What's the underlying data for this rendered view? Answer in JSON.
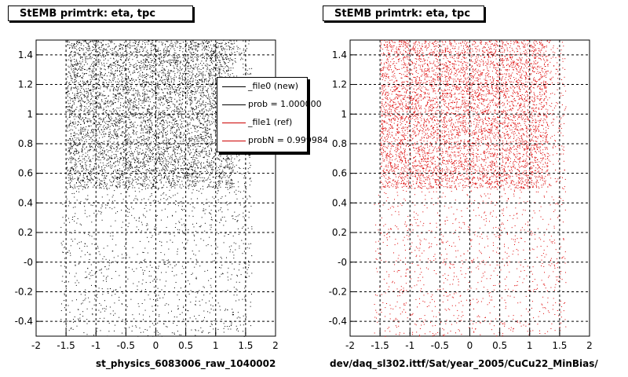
{
  "panels": {
    "left": {
      "title": "StEMB primtrk: eta, tpc",
      "xlabel": "st_physics_6083006_raw_1040002"
    },
    "right": {
      "title": "StEMB primtrk: eta, tpc",
      "xlabel": "dev/daq_sl302.ittf/Sat/year_2005/CuCu22_MinBias/"
    }
  },
  "legend": {
    "entries": [
      {
        "label": "_file0 (new)",
        "color": "#000000"
      },
      {
        "label": "prob = 1.000000",
        "color": "#000000"
      },
      {
        "label": "_file1 (ref)",
        "color": "#cc0000"
      },
      {
        "label": "probN = 0.999984",
        "color": "#cc0000"
      }
    ]
  },
  "chart_data": [
    {
      "type": "scatter",
      "title": "StEMB primtrk: eta, tpc",
      "xlabel": "st_physics_6083006_raw_1040002",
      "ylabel": "",
      "xlim": [
        -2,
        2
      ],
      "ylim": [
        -0.5,
        1.5
      ],
      "x_ticks": [
        "-2",
        "-1.5",
        "-1",
        "-0.5",
        "0",
        "0.5",
        "1",
        "1.5",
        "2"
      ],
      "y_ticks": [
        "-0.4",
        "-0.2",
        "-0",
        "0.2",
        "0.4",
        "0.6",
        "0.8",
        "1",
        "1.2",
        "1.4"
      ],
      "grid": true,
      "marker_color": "#000000",
      "density": {
        "x_dense_range": [
          -1.5,
          1.3
        ],
        "y_dense_range": [
          0.5,
          1.5
        ],
        "x_sparse_range": [
          -1.6,
          1.6
        ],
        "y_sparse_range": [
          -0.5,
          0.5
        ]
      }
    },
    {
      "type": "scatter",
      "title": "StEMB primtrk: eta, tpc",
      "xlabel": "dev/daq_sl302.ittf/Sat/year_2005/CuCu22_MinBias/",
      "ylabel": "",
      "xlim": [
        -2,
        2
      ],
      "ylim": [
        -0.5,
        1.5
      ],
      "x_ticks": [
        "-2",
        "-1.5",
        "-1",
        "-0.5",
        "0",
        "0.5",
        "1",
        "1.5",
        "2"
      ],
      "y_ticks": [
        "-0.4",
        "-0.2",
        "-0",
        "0.2",
        "0.4",
        "0.6",
        "0.8",
        "1",
        "1.2",
        "1.4"
      ],
      "grid": true,
      "marker_color": "#dd0000",
      "density": {
        "x_dense_range": [
          -1.5,
          1.3
        ],
        "y_dense_range": [
          0.5,
          1.5
        ],
        "x_sparse_range": [
          -1.6,
          1.6
        ],
        "y_sparse_range": [
          -0.5,
          0.5
        ]
      }
    }
  ]
}
